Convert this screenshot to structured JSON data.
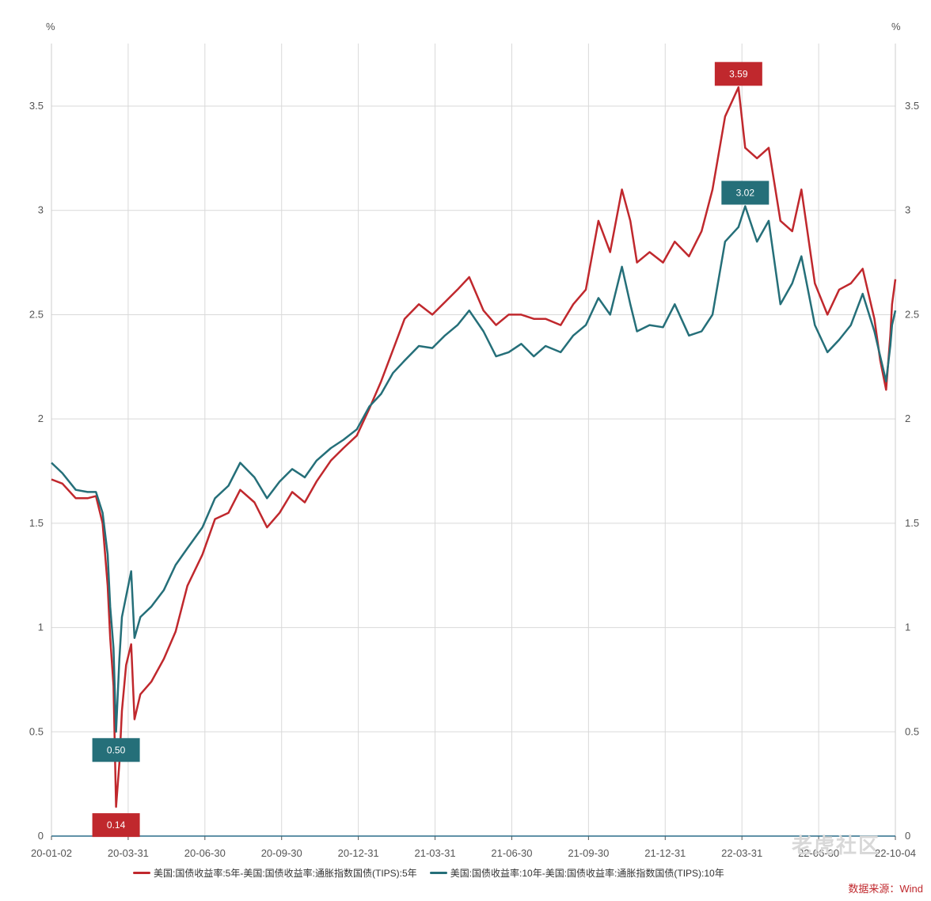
{
  "chart_data": {
    "type": "line",
    "y_unit_left": "%",
    "y_unit_right": "%",
    "ylim": [
      0,
      3.8
    ],
    "y_ticks": [
      0,
      0.5,
      1,
      1.5,
      2,
      2.5,
      3,
      3.5
    ],
    "y_tick_labels": [
      "0",
      "0.5",
      "1",
      "1.5",
      "2",
      "2.5",
      "3",
      "3.5"
    ],
    "x_tick_labels": [
      "20-01-02",
      "20-03-31",
      "20-06-30",
      "20-09-30",
      "20-12-31",
      "21-03-31",
      "21-06-30",
      "21-09-30",
      "21-12-31",
      "22-03-31",
      "22-06-30",
      "22-10-04"
    ],
    "x_range": [
      "2020-01-02",
      "2022-10-04"
    ],
    "grid": true,
    "legend_position": "bottom",
    "series": [
      {
        "name": "美国:国债收益率:5年-美国:国债收益率:通胀指数国债(TIPS):5年",
        "color": "#c0282d",
        "points": [
          [
            "2020-01-02",
            1.71
          ],
          [
            "2020-01-15",
            1.69
          ],
          [
            "2020-01-31",
            1.62
          ],
          [
            "2020-02-14",
            1.62
          ],
          [
            "2020-02-24",
            1.63
          ],
          [
            "2020-03-03",
            1.5
          ],
          [
            "2020-03-09",
            1.2
          ],
          [
            "2020-03-12",
            0.95
          ],
          [
            "2020-03-16",
            0.72
          ],
          [
            "2020-03-19",
            0.14
          ],
          [
            "2020-03-23",
            0.35
          ],
          [
            "2020-03-26",
            0.6
          ],
          [
            "2020-03-31",
            0.82
          ],
          [
            "2020-04-06",
            0.92
          ],
          [
            "2020-04-10",
            0.56
          ],
          [
            "2020-04-17",
            0.68
          ],
          [
            "2020-04-30",
            0.74
          ],
          [
            "2020-05-15",
            0.85
          ],
          [
            "2020-05-29",
            0.98
          ],
          [
            "2020-06-12",
            1.2
          ],
          [
            "2020-06-30",
            1.35
          ],
          [
            "2020-07-15",
            1.52
          ],
          [
            "2020-07-31",
            1.55
          ],
          [
            "2020-08-14",
            1.66
          ],
          [
            "2020-08-31",
            1.6
          ],
          [
            "2020-09-15",
            1.48
          ],
          [
            "2020-09-30",
            1.55
          ],
          [
            "2020-10-15",
            1.65
          ],
          [
            "2020-10-30",
            1.6
          ],
          [
            "2020-11-13",
            1.7
          ],
          [
            "2020-11-30",
            1.8
          ],
          [
            "2020-12-15",
            1.86
          ],
          [
            "2020-12-31",
            1.92
          ],
          [
            "2021-01-15",
            2.05
          ],
          [
            "2021-01-29",
            2.18
          ],
          [
            "2021-02-12",
            2.33
          ],
          [
            "2021-02-26",
            2.48
          ],
          [
            "2021-03-15",
            2.55
          ],
          [
            "2021-03-31",
            2.5
          ],
          [
            "2021-04-15",
            2.56
          ],
          [
            "2021-04-30",
            2.62
          ],
          [
            "2021-05-14",
            2.68
          ],
          [
            "2021-05-31",
            2.52
          ],
          [
            "2021-06-15",
            2.45
          ],
          [
            "2021-06-30",
            2.5
          ],
          [
            "2021-07-15",
            2.5
          ],
          [
            "2021-07-30",
            2.48
          ],
          [
            "2021-08-13",
            2.48
          ],
          [
            "2021-08-31",
            2.45
          ],
          [
            "2021-09-15",
            2.55
          ],
          [
            "2021-09-30",
            2.62
          ],
          [
            "2021-10-15",
            2.95
          ],
          [
            "2021-10-29",
            2.8
          ],
          [
            "2021-11-12",
            3.1
          ],
          [
            "2021-11-22",
            2.95
          ],
          [
            "2021-11-30",
            2.75
          ],
          [
            "2021-12-15",
            2.8
          ],
          [
            "2021-12-31",
            2.75
          ],
          [
            "2022-01-14",
            2.85
          ],
          [
            "2022-01-31",
            2.78
          ],
          [
            "2022-02-15",
            2.9
          ],
          [
            "2022-02-28",
            3.1
          ],
          [
            "2022-03-15",
            3.45
          ],
          [
            "2022-03-31",
            3.59
          ],
          [
            "2022-04-08",
            3.3
          ],
          [
            "2022-04-22",
            3.25
          ],
          [
            "2022-05-06",
            3.3
          ],
          [
            "2022-05-20",
            2.95
          ],
          [
            "2022-06-03",
            2.9
          ],
          [
            "2022-06-14",
            3.1
          ],
          [
            "2022-06-30",
            2.65
          ],
          [
            "2022-07-15",
            2.5
          ],
          [
            "2022-07-29",
            2.62
          ],
          [
            "2022-08-12",
            2.65
          ],
          [
            "2022-08-26",
            2.72
          ],
          [
            "2022-09-09",
            2.48
          ],
          [
            "2022-09-16",
            2.28
          ],
          [
            "2022-09-23",
            2.14
          ],
          [
            "2022-09-28",
            2.4
          ],
          [
            "2022-09-30",
            2.55
          ],
          [
            "2022-10-04",
            2.67
          ]
        ],
        "labels": [
          {
            "date": "2020-03-19",
            "value": "0.14",
            "position": "below"
          },
          {
            "date": "2022-03-31",
            "value": "3.59",
            "position": "above"
          }
        ]
      },
      {
        "name": "美国:国债收益率:10年-美国:国债收益率:通胀指数国债(TIPS):10年",
        "color": "#256f79",
        "points": [
          [
            "2020-01-02",
            1.79
          ],
          [
            "2020-01-15",
            1.74
          ],
          [
            "2020-01-31",
            1.66
          ],
          [
            "2020-02-14",
            1.65
          ],
          [
            "2020-02-24",
            1.65
          ],
          [
            "2020-03-03",
            1.55
          ],
          [
            "2020-03-09",
            1.35
          ],
          [
            "2020-03-12",
            1.1
          ],
          [
            "2020-03-16",
            0.9
          ],
          [
            "2020-03-19",
            0.5
          ],
          [
            "2020-03-23",
            0.85
          ],
          [
            "2020-03-26",
            1.05
          ],
          [
            "2020-03-31",
            1.15
          ],
          [
            "2020-04-06",
            1.27
          ],
          [
            "2020-04-10",
            0.95
          ],
          [
            "2020-04-17",
            1.05
          ],
          [
            "2020-04-30",
            1.1
          ],
          [
            "2020-05-15",
            1.18
          ],
          [
            "2020-05-29",
            1.3
          ],
          [
            "2020-06-12",
            1.38
          ],
          [
            "2020-06-30",
            1.48
          ],
          [
            "2020-07-15",
            1.62
          ],
          [
            "2020-07-31",
            1.68
          ],
          [
            "2020-08-14",
            1.79
          ],
          [
            "2020-08-31",
            1.72
          ],
          [
            "2020-09-15",
            1.62
          ],
          [
            "2020-09-30",
            1.7
          ],
          [
            "2020-10-15",
            1.76
          ],
          [
            "2020-10-30",
            1.72
          ],
          [
            "2020-11-13",
            1.8
          ],
          [
            "2020-11-30",
            1.86
          ],
          [
            "2020-12-15",
            1.9
          ],
          [
            "2020-12-31",
            1.95
          ],
          [
            "2021-01-15",
            2.06
          ],
          [
            "2021-01-29",
            2.12
          ],
          [
            "2021-02-12",
            2.22
          ],
          [
            "2021-02-26",
            2.28
          ],
          [
            "2021-03-15",
            2.35
          ],
          [
            "2021-03-31",
            2.34
          ],
          [
            "2021-04-15",
            2.4
          ],
          [
            "2021-04-30",
            2.45
          ],
          [
            "2021-05-14",
            2.52
          ],
          [
            "2021-05-31",
            2.42
          ],
          [
            "2021-06-15",
            2.3
          ],
          [
            "2021-06-30",
            2.32
          ],
          [
            "2021-07-15",
            2.36
          ],
          [
            "2021-07-30",
            2.3
          ],
          [
            "2021-08-13",
            2.35
          ],
          [
            "2021-08-31",
            2.32
          ],
          [
            "2021-09-15",
            2.4
          ],
          [
            "2021-09-30",
            2.45
          ],
          [
            "2021-10-15",
            2.58
          ],
          [
            "2021-10-29",
            2.5
          ],
          [
            "2021-11-12",
            2.73
          ],
          [
            "2021-11-22",
            2.55
          ],
          [
            "2021-11-30",
            2.42
          ],
          [
            "2021-12-15",
            2.45
          ],
          [
            "2021-12-31",
            2.44
          ],
          [
            "2022-01-14",
            2.55
          ],
          [
            "2022-01-31",
            2.4
          ],
          [
            "2022-02-15",
            2.42
          ],
          [
            "2022-02-28",
            2.5
          ],
          [
            "2022-03-15",
            2.85
          ],
          [
            "2022-03-31",
            2.92
          ],
          [
            "2022-04-08",
            3.02
          ],
          [
            "2022-04-22",
            2.85
          ],
          [
            "2022-05-06",
            2.95
          ],
          [
            "2022-05-20",
            2.55
          ],
          [
            "2022-06-03",
            2.65
          ],
          [
            "2022-06-14",
            2.78
          ],
          [
            "2022-06-30",
            2.45
          ],
          [
            "2022-07-15",
            2.32
          ],
          [
            "2022-07-29",
            2.38
          ],
          [
            "2022-08-12",
            2.45
          ],
          [
            "2022-08-26",
            2.6
          ],
          [
            "2022-09-09",
            2.42
          ],
          [
            "2022-09-16",
            2.3
          ],
          [
            "2022-09-23",
            2.18
          ],
          [
            "2022-09-28",
            2.35
          ],
          [
            "2022-09-30",
            2.45
          ],
          [
            "2022-10-04",
            2.52
          ]
        ],
        "labels": [
          {
            "date": "2020-03-19",
            "value": "0.50",
            "position": "below"
          },
          {
            "date": "2022-04-08",
            "value": "3.02",
            "position": "above"
          }
        ]
      }
    ]
  },
  "source": "数据来源：Wind",
  "watermark": "老虎社区"
}
